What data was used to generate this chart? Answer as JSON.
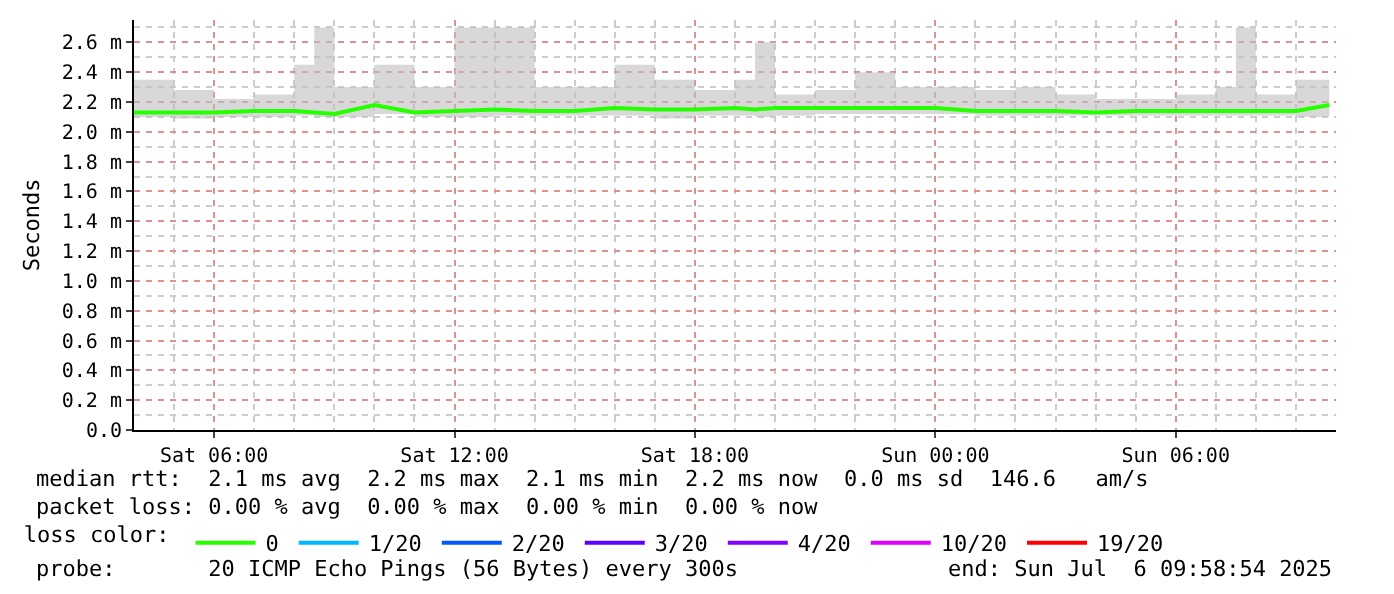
{
  "chart_data": {
    "type": "line",
    "ylabel": "Seconds",
    "legend_title": "loss color:",
    "x": [
      "2025-07-05T04:00",
      "2025-07-05T05:00",
      "2025-07-05T06:00",
      "2025-07-05T07:00",
      "2025-07-05T08:00",
      "2025-07-05T08:30",
      "2025-07-05T09:00",
      "2025-07-05T10:00",
      "2025-07-05T11:00",
      "2025-07-05T12:00",
      "2025-07-05T13:00",
      "2025-07-05T14:00",
      "2025-07-05T15:00",
      "2025-07-05T16:00",
      "2025-07-05T17:00",
      "2025-07-05T18:00",
      "2025-07-05T19:00",
      "2025-07-05T19:30",
      "2025-07-05T20:00",
      "2025-07-05T21:00",
      "2025-07-05T22:00",
      "2025-07-05T23:00",
      "2025-07-06T00:00",
      "2025-07-06T01:00",
      "2025-07-06T02:00",
      "2025-07-06T03:00",
      "2025-07-06T04:00",
      "2025-07-06T05:00",
      "2025-07-06T06:00",
      "2025-07-06T07:00",
      "2025-07-06T07:30",
      "2025-07-06T08:00",
      "2025-07-06T09:00",
      "2025-07-06T09:50"
    ],
    "series": [
      {
        "name": "0",
        "color": "#26ff00",
        "values": [
          2.13,
          2.13,
          2.13,
          2.14,
          2.14,
          2.13,
          2.12,
          2.18,
          2.13,
          2.14,
          2.15,
          2.14,
          2.14,
          2.16,
          2.15,
          2.15,
          2.16,
          2.15,
          2.16,
          2.16,
          2.16,
          2.16,
          2.16,
          2.14,
          2.14,
          2.14,
          2.13,
          2.14,
          2.14,
          2.14,
          2.14,
          2.14,
          2.14,
          2.18
        ],
        "lower": [
          2.1,
          2.09,
          2.1,
          2.1,
          2.11,
          2.1,
          2.1,
          2.12,
          2.1,
          2.1,
          2.11,
          2.11,
          2.11,
          2.11,
          2.09,
          2.11,
          2.11,
          2.1,
          2.11,
          2.12,
          2.12,
          2.12,
          2.12,
          2.11,
          2.11,
          2.11,
          2.11,
          2.11,
          2.11,
          2.11,
          2.11,
          2.11,
          2.1,
          2.1
        ],
        "upper": [
          2.35,
          2.28,
          2.22,
          2.25,
          2.45,
          2.7,
          2.3,
          2.45,
          2.3,
          2.7,
          2.7,
          2.3,
          2.3,
          2.45,
          2.35,
          2.28,
          2.35,
          2.6,
          2.25,
          2.28,
          2.4,
          2.3,
          2.3,
          2.28,
          2.3,
          2.25,
          2.22,
          2.22,
          2.25,
          2.3,
          2.7,
          2.25,
          2.35,
          2.3
        ]
      },
      {
        "name": "1/20",
        "color": "#00b8ff",
        "values": [
          null,
          null,
          null,
          null,
          null,
          null,
          null,
          null,
          null,
          null,
          null,
          null,
          null,
          null,
          null,
          null,
          null,
          null,
          null,
          null,
          null,
          null,
          null,
          null,
          null,
          null,
          null,
          null,
          null,
          null,
          null,
          null,
          null,
          null
        ]
      },
      {
        "name": "2/20",
        "color": "#0059ff",
        "values": [
          null,
          null,
          null,
          null,
          null,
          null,
          null,
          null,
          null,
          null,
          null,
          null,
          null,
          null,
          null,
          null,
          null,
          null,
          null,
          null,
          null,
          null,
          null,
          null,
          null,
          null,
          null,
          null,
          null,
          null,
          null,
          null,
          null,
          null
        ]
      },
      {
        "name": "3/20",
        "color": "#5e00ff",
        "values": [
          null,
          null,
          null,
          null,
          null,
          null,
          null,
          null,
          null,
          null,
          null,
          null,
          null,
          null,
          null,
          null,
          null,
          null,
          null,
          null,
          null,
          null,
          null,
          null,
          null,
          null,
          null,
          null,
          null,
          null,
          null,
          null,
          null,
          null
        ]
      },
      {
        "name": "4/20",
        "color": "#7e00ff",
        "values": [
          null,
          null,
          null,
          null,
          null,
          null,
          null,
          null,
          null,
          null,
          null,
          null,
          null,
          null,
          null,
          null,
          null,
          null,
          null,
          null,
          null,
          null,
          null,
          null,
          null,
          null,
          null,
          null,
          null,
          null,
          null,
          null,
          null,
          null
        ]
      },
      {
        "name": "10/20",
        "color": "#dd00ff",
        "values": [
          null,
          null,
          null,
          null,
          null,
          null,
          null,
          null,
          null,
          null,
          null,
          null,
          null,
          null,
          null,
          null,
          null,
          null,
          null,
          null,
          null,
          null,
          null,
          null,
          null,
          null,
          null,
          null,
          null,
          null,
          null,
          null,
          null,
          null
        ]
      },
      {
        "name": "19/20",
        "color": "#ff0000",
        "values": [
          null,
          null,
          null,
          null,
          null,
          null,
          null,
          null,
          null,
          null,
          null,
          null,
          null,
          null,
          null,
          null,
          null,
          null,
          null,
          null,
          null,
          null,
          null,
          null,
          null,
          null,
          null,
          null,
          null,
          null,
          null,
          null,
          null,
          null
        ]
      }
    ],
    "xlim": [
      "2025-07-05T04:00",
      "2025-07-06T10:00"
    ],
    "xticks": [
      {
        "value": "2025-07-05T06:00",
        "label": "Sat 06:00"
      },
      {
        "value": "2025-07-05T12:00",
        "label": "Sat 12:00"
      },
      {
        "value": "2025-07-05T18:00",
        "label": "Sat 18:00"
      },
      {
        "value": "2025-07-06T00:00",
        "label": "Sun 00:00"
      },
      {
        "value": "2025-07-06T06:00",
        "label": "Sun 06:00"
      }
    ],
    "ylim": [
      0,
      2.75
    ],
    "yticks": [
      {
        "value": 0,
        "label": "0.0"
      },
      {
        "value": 0.2,
        "label": "0.2 m"
      },
      {
        "value": 0.4,
        "label": "0.4 m"
      },
      {
        "value": 0.6,
        "label": "0.6 m"
      },
      {
        "value": 0.8,
        "label": "0.8 m"
      },
      {
        "value": 1.0,
        "label": "1.0 m"
      },
      {
        "value": 1.2,
        "label": "1.2 m"
      },
      {
        "value": 1.4,
        "label": "1.4 m"
      },
      {
        "value": 1.6,
        "label": "1.6 m"
      },
      {
        "value": 1.8,
        "label": "1.8 m"
      },
      {
        "value": 2.0,
        "label": "2.0 m"
      },
      {
        "value": 2.2,
        "label": "2.2 m"
      },
      {
        "value": 2.4,
        "label": "2.4 m"
      },
      {
        "value": 2.6,
        "label": "2.6 m"
      }
    ],
    "grid": true,
    "legend": "bottom",
    "annotations": [
      "median rtt:  2.1 ms avg  2.2 ms max  2.1 ms min  2.2 ms now  0.0 ms sd  146.6   am/s",
      "packet loss: 0.00 % avg  0.00 % max  0.00 % min  0.00 % now",
      "probe:       20 ICMP Echo Pings (56 Bytes) every 300s",
      "end: Sun Jul  6 09:58:54 2025"
    ]
  }
}
